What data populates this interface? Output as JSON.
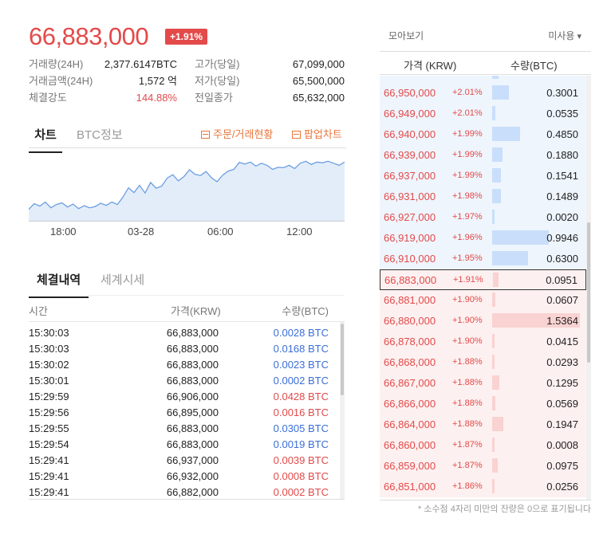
{
  "ticker": {
    "price": "66,883,000",
    "change_pct": "+1.91%"
  },
  "stats": [
    {
      "label1": "거래량(24H)",
      "value1": "2,377.6147BTC",
      "label2": "고가(당일)",
      "value2": "67,099,000"
    },
    {
      "label1": "거래금액(24H)",
      "value1": "1,572 억",
      "label2": "저가(당일)",
      "value2": "65,500,000"
    },
    {
      "label1": "체결강도",
      "value1": "144.88%",
      "label2": "전일종가",
      "value2": "65,632,000"
    }
  ],
  "chart_tabs": {
    "chart": "차트",
    "info": "BTC정보",
    "order_link": "주문/거래현황",
    "popup_link": "팝업차트"
  },
  "chart_data": {
    "type": "area",
    "title": "",
    "xlabel": "",
    "ylabel": "",
    "x_ticks": [
      "18:00",
      "03-28",
      "06:00",
      "12:00"
    ],
    "y_values": [
      65720,
      65860,
      65800,
      65900,
      65760,
      65840,
      65880,
      65780,
      65850,
      65740,
      65810,
      65760,
      65790,
      65870,
      65820,
      65900,
      65840,
      66020,
      66250,
      66130,
      66310,
      66120,
      66380,
      66240,
      66290,
      66490,
      66570,
      66420,
      66520,
      66690,
      66580,
      66550,
      66650,
      66490,
      66400,
      66560,
      66660,
      66700,
      66870,
      66830,
      66880,
      66780,
      66850,
      66800,
      66700,
      66750,
      66740,
      66800,
      66720,
      66850,
      66900,
      66820,
      66880,
      66860,
      66900,
      66850,
      66800,
      66880
    ],
    "ylim": [
      65500,
      67100
    ]
  },
  "trade_tabs": {
    "history": "체결내역",
    "world": "세계시세"
  },
  "trade_head": {
    "time": "시간",
    "price": "가격(KRW)",
    "qty": "수량(BTC)"
  },
  "trades": [
    {
      "time": "15:30:03",
      "price": "66,883,000",
      "qty": "0.0028 BTC",
      "side": "blue"
    },
    {
      "time": "15:30:03",
      "price": "66,883,000",
      "qty": "0.0168 BTC",
      "side": "blue"
    },
    {
      "time": "15:30:02",
      "price": "66,883,000",
      "qty": "0.0023 BTC",
      "side": "blue"
    },
    {
      "time": "15:30:01",
      "price": "66,883,000",
      "qty": "0.0002 BTC",
      "side": "blue"
    },
    {
      "time": "15:29:59",
      "price": "66,906,000",
      "qty": "0.0428 BTC",
      "side": "red"
    },
    {
      "time": "15:29:56",
      "price": "66,895,000",
      "qty": "0.0016 BTC",
      "side": "red"
    },
    {
      "time": "15:29:55",
      "price": "66,883,000",
      "qty": "0.0305 BTC",
      "side": "blue"
    },
    {
      "time": "15:29:54",
      "price": "66,883,000",
      "qty": "0.0019 BTC",
      "side": "blue"
    },
    {
      "time": "15:29:41",
      "price": "66,937,000",
      "qty": "0.0039 BTC",
      "side": "red"
    },
    {
      "time": "15:29:41",
      "price": "66,932,000",
      "qty": "0.0008 BTC",
      "side": "red"
    },
    {
      "time": "15:29:41",
      "price": "66,882,000",
      "qty": "0.0002 BTC",
      "side": "red"
    }
  ],
  "orderbook": {
    "summary_label": "모아보기",
    "unused_label": "미사용",
    "price_head": "가격 (KRW)",
    "qty_head": "수량(BTC)",
    "max_qty": 1.5364,
    "rows": [
      {
        "price": "66,950,000",
        "chg": "+2.01%",
        "qty": "0.3001",
        "qty_num": 0.3001,
        "side": "ask"
      },
      {
        "price": "66,949,000",
        "chg": "+2.01%",
        "qty": "0.0535",
        "qty_num": 0.0535,
        "side": "ask"
      },
      {
        "price": "66,940,000",
        "chg": "+1.99%",
        "qty": "0.4850",
        "qty_num": 0.485,
        "side": "ask"
      },
      {
        "price": "66,939,000",
        "chg": "+1.99%",
        "qty": "0.1880",
        "qty_num": 0.188,
        "side": "ask"
      },
      {
        "price": "66,937,000",
        "chg": "+1.99%",
        "qty": "0.1541",
        "qty_num": 0.1541,
        "side": "ask"
      },
      {
        "price": "66,931,000",
        "chg": "+1.98%",
        "qty": "0.1489",
        "qty_num": 0.1489,
        "side": "ask"
      },
      {
        "price": "66,927,000",
        "chg": "+1.97%",
        "qty": "0.0020",
        "qty_num": 0.002,
        "side": "ask"
      },
      {
        "price": "66,919,000",
        "chg": "+1.96%",
        "qty": "0.9946",
        "qty_num": 0.9946,
        "side": "ask"
      },
      {
        "price": "66,910,000",
        "chg": "+1.95%",
        "qty": "0.6300",
        "qty_num": 0.63,
        "side": "ask"
      },
      {
        "price": "66,883,000",
        "chg": "+1.91%",
        "qty": "0.0951",
        "qty_num": 0.0951,
        "side": "bid",
        "current": true
      },
      {
        "price": "66,881,000",
        "chg": "+1.90%",
        "qty": "0.0607",
        "qty_num": 0.0607,
        "side": "bid"
      },
      {
        "price": "66,880,000",
        "chg": "+1.90%",
        "qty": "1.5364",
        "qty_num": 1.5364,
        "side": "bid"
      },
      {
        "price": "66,878,000",
        "chg": "+1.90%",
        "qty": "0.0415",
        "qty_num": 0.0415,
        "side": "bid"
      },
      {
        "price": "66,868,000",
        "chg": "+1.88%",
        "qty": "0.0293",
        "qty_num": 0.0293,
        "side": "bid"
      },
      {
        "price": "66,867,000",
        "chg": "+1.88%",
        "qty": "0.1295",
        "qty_num": 0.1295,
        "side": "bid"
      },
      {
        "price": "66,866,000",
        "chg": "+1.88%",
        "qty": "0.0569",
        "qty_num": 0.0569,
        "side": "bid"
      },
      {
        "price": "66,864,000",
        "chg": "+1.88%",
        "qty": "0.1947",
        "qty_num": 0.1947,
        "side": "bid"
      },
      {
        "price": "66,860,000",
        "chg": "+1.87%",
        "qty": "0.0008",
        "qty_num": 0.0008,
        "side": "bid"
      },
      {
        "price": "66,859,000",
        "chg": "+1.87%",
        "qty": "0.0975",
        "qty_num": 0.0975,
        "side": "bid"
      },
      {
        "price": "66,851,000",
        "chg": "+1.86%",
        "qty": "0.0256",
        "qty_num": 0.0256,
        "side": "bid"
      }
    ],
    "note": "* 소수점 4자리 미만의 잔량은 0으로 표기됩니다"
  },
  "colors": {
    "up": "#e34a4a",
    "down": "#3a6fd8",
    "chart_line": "#6b9ee0",
    "chart_fill": "#e3edfa"
  }
}
